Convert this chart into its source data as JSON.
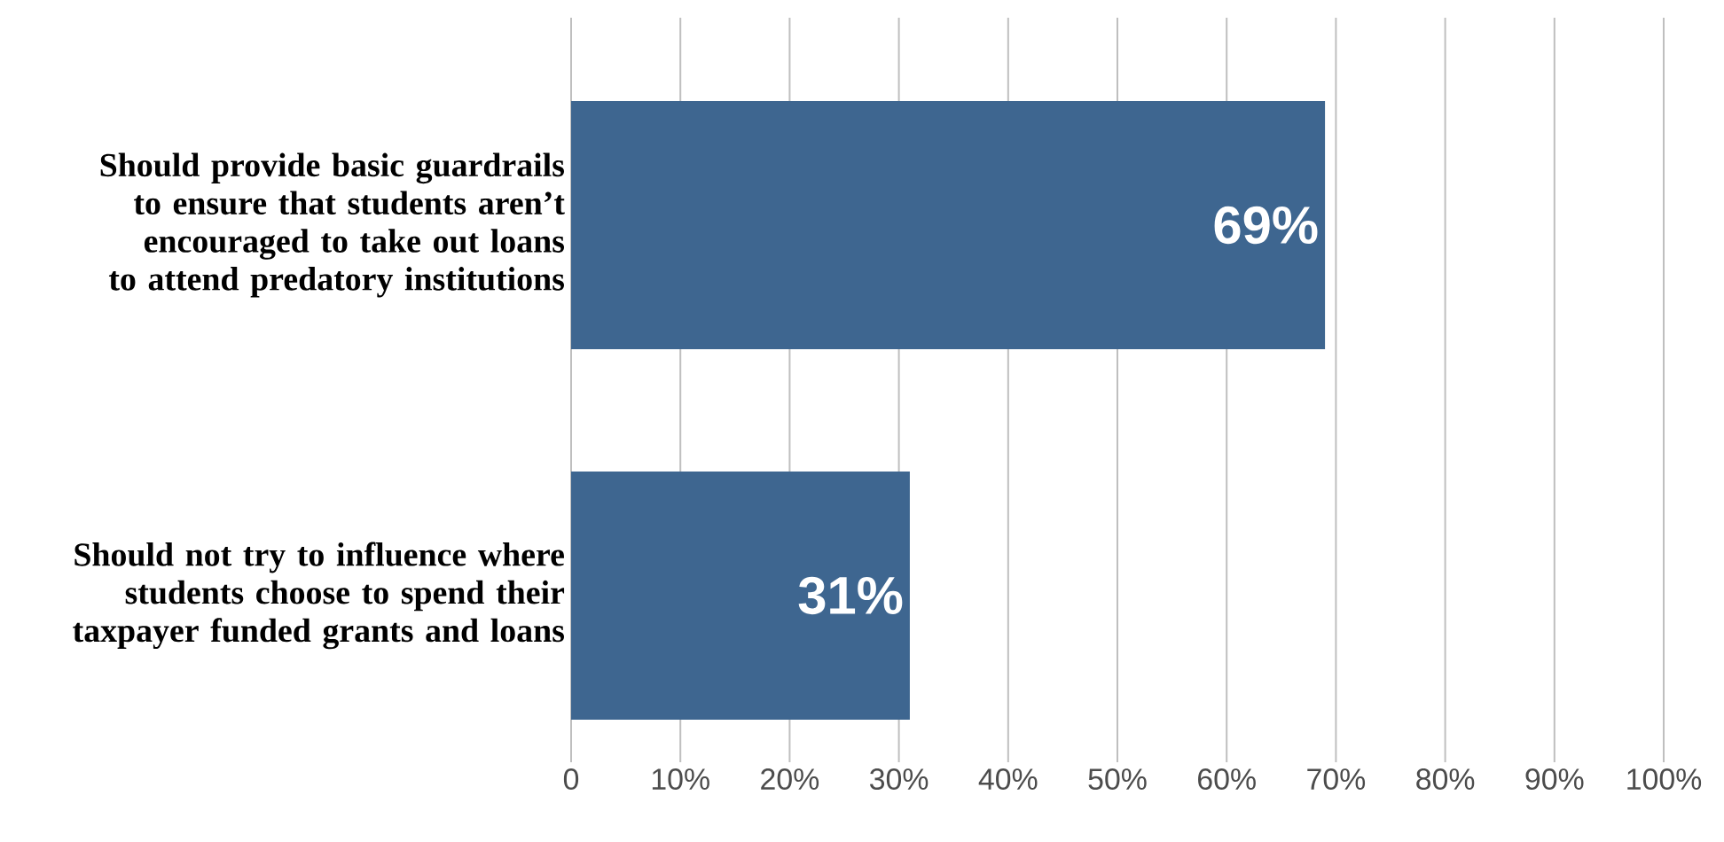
{
  "chart_data": {
    "type": "bar",
    "orientation": "horizontal",
    "categories": [
      "Should provide basic guardrails to ensure that students aren’t encouraged to take out loans to attend predatory institutions",
      "Should not try to influence where students choose to spend their taxpayer funded grants and loans"
    ],
    "values": [
      69,
      31
    ],
    "value_labels": [
      "69%",
      "31%"
    ],
    "color": "#3e6690",
    "xlim": [
      0,
      100
    ],
    "xticks": [
      0,
      {
        "value": 10,
        "label": "10%"
      },
      {
        "value": 20,
        "label": "20%"
      },
      {
        "value": 30,
        "label": "30%"
      },
      {
        "value": 40,
        "label": "40%"
      },
      {
        "value": 50,
        "label": "50%"
      },
      {
        "value": 60,
        "label": "60%"
      },
      {
        "value": 70,
        "label": "70%"
      },
      {
        "value": 80,
        "label": "80%"
      },
      {
        "value": 90,
        "label": "90%"
      },
      {
        "value": 100,
        "label": "100%"
      }
    ],
    "grid": "x"
  }
}
